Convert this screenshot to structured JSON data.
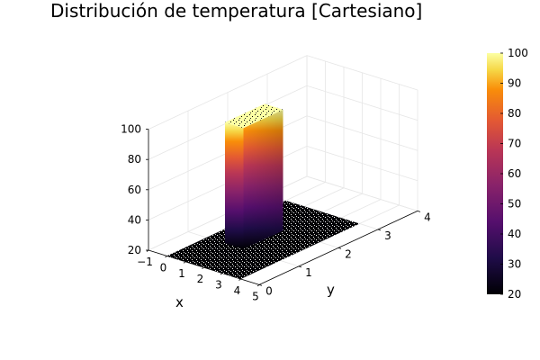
{
  "chart_data": {
    "type": "surface",
    "title": "Distribución de temperatura [Cartesiano]",
    "xlabel": "x",
    "ylabel": "y",
    "zlabel": "",
    "xlim": [
      -1,
      5
    ],
    "ylim": [
      0,
      4
    ],
    "zlim": [
      20,
      100
    ],
    "x_ticks": [
      "−1",
      "0",
      "1",
      "2",
      "3",
      "4",
      "5"
    ],
    "y_ticks": [
      "0",
      "1",
      "2",
      "3",
      "4"
    ],
    "z_ticks": [
      "20",
      "40",
      "60",
      "80",
      "100"
    ],
    "colorbar": {
      "range": [
        20,
        100
      ],
      "ticks": [
        "20",
        "30",
        "40",
        "50",
        "60",
        "70",
        "80",
        "90",
        "100"
      ],
      "colormap": "inferno"
    },
    "surface": {
      "base_value": 20,
      "hot_value": 100,
      "hot_region": {
        "x": [
          1,
          2
        ],
        "y": [
          1,
          2
        ]
      },
      "domain": {
        "x": [
          0,
          4
        ],
        "y": [
          0,
          3
        ]
      }
    },
    "grid": true,
    "legend": "none",
    "colors": {
      "low": "#000004",
      "mid": "#bc3754",
      "high": "#fcffa4"
    }
  }
}
